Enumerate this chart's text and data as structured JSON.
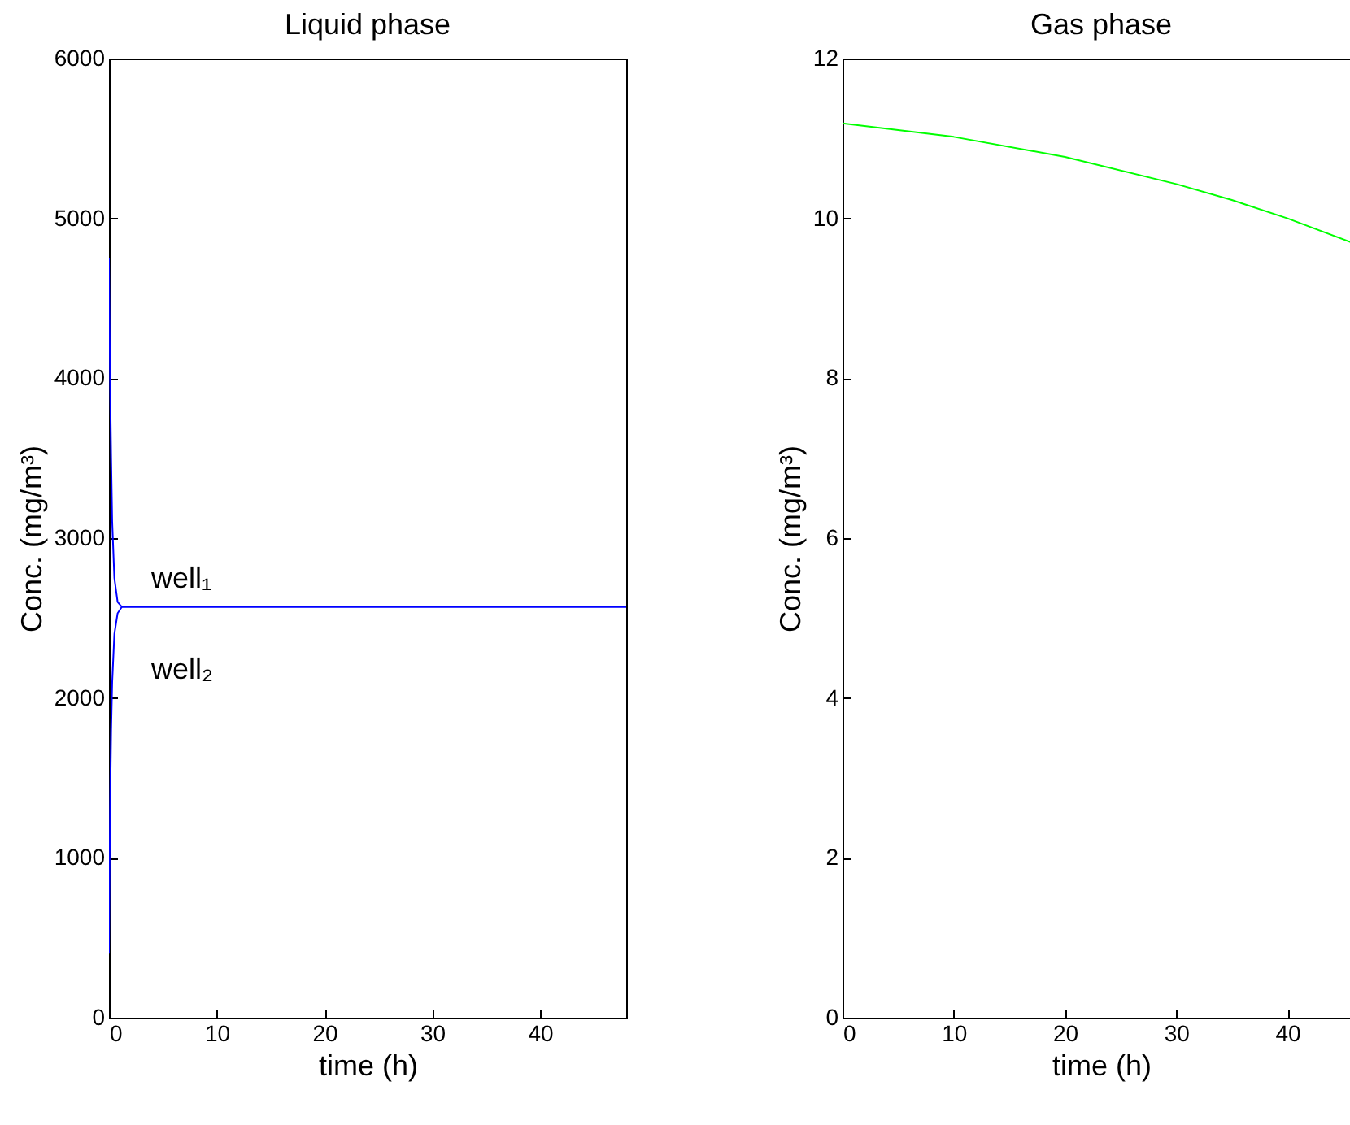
{
  "chart_data": [
    {
      "type": "line",
      "title": "Liquid phase",
      "xlabel": "time (h)",
      "ylabel": "Conc. (mg/m³)",
      "xlim": [
        0,
        48
      ],
      "xticks": [
        0,
        10,
        20,
        30,
        40
      ],
      "ylim": [
        0,
        6000
      ],
      "yticks": [
        0,
        1000,
        2000,
        3000,
        4000,
        5000,
        6000
      ],
      "series": [
        {
          "name": "well₁",
          "color": "#0000ff",
          "x": [
            0,
            0.1,
            0.2,
            0.3,
            0.5,
            0.8,
            1.2,
            48
          ],
          "values": [
            4750,
            4000,
            3500,
            3100,
            2750,
            2600,
            2570,
            2570
          ]
        },
        {
          "name": "well₂",
          "color": "#0000ff",
          "x": [
            0,
            0.1,
            0.2,
            0.3,
            0.5,
            0.8,
            1.2,
            48
          ],
          "values": [
            400,
            1300,
            1800,
            2100,
            2400,
            2530,
            2570,
            2570
          ]
        }
      ]
    },
    {
      "type": "line",
      "title": "Gas phase",
      "xlabel": "time (h)",
      "ylabel": "Conc. (mg/m³)",
      "xlim": [
        0,
        46.5
      ],
      "xticks": [
        0,
        10,
        20,
        30,
        40
      ],
      "ylim": [
        0,
        12
      ],
      "yticks": [
        0,
        2,
        4,
        6,
        8,
        10,
        12
      ],
      "series": [
        {
          "color": "#00ff00",
          "x": [
            0,
            10,
            20,
            30,
            35,
            40,
            46.5
          ],
          "values": [
            11.19,
            11.02,
            10.77,
            10.43,
            10.23,
            10.0,
            9.66
          ]
        }
      ]
    }
  ]
}
